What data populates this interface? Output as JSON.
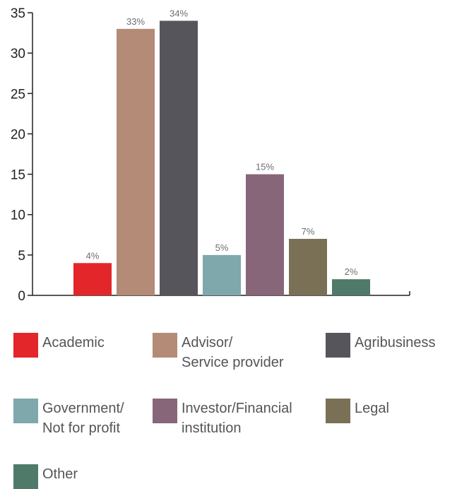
{
  "chart_data": {
    "type": "bar",
    "categories": [
      "Academic",
      "Advisor/\nService provider",
      "Agribusiness",
      "Government/\nNot for profit",
      "Investor/Financial\ninstitution",
      "Legal",
      "Other"
    ],
    "values": [
      4,
      33,
      34,
      5,
      15,
      7,
      2
    ],
    "data_labels": [
      "4%",
      "33%",
      "34%",
      "5%",
      "15%",
      "7%",
      "2%"
    ],
    "colors": [
      "#e3262a",
      "#b38b77",
      "#56555c",
      "#7fa8ad",
      "#88667a",
      "#7a7056",
      "#4f7a69"
    ],
    "ylim": [
      0,
      35
    ],
    "yticks": [
      "0",
      "5",
      "10",
      "15",
      "20",
      "25",
      "30",
      "35"
    ],
    "grid": false,
    "legend": "bottom"
  }
}
